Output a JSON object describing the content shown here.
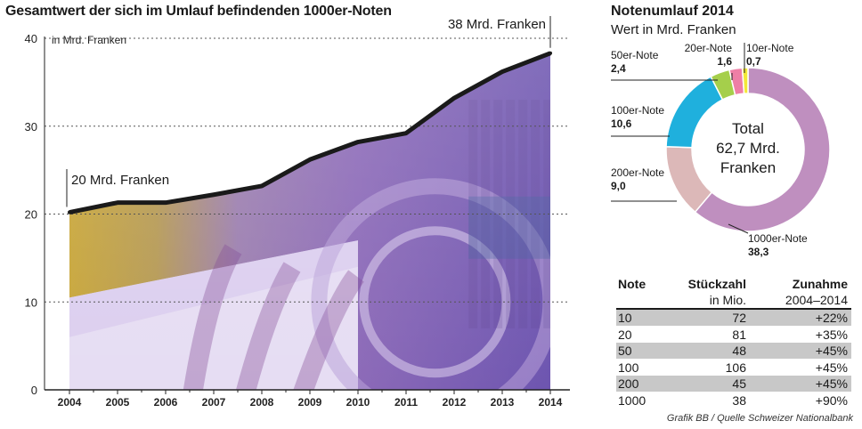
{
  "main_title": "Gesamtwert der sich im Umlauf befindenden 1000er-Noten",
  "chart_data": [
    {
      "type": "area",
      "title": "Gesamtwert der sich im Umlauf befindenden 1000er-Noten",
      "ylabel": "in Mrd. Franken",
      "x": [
        "2004",
        "2005",
        "2006",
        "2007",
        "2008",
        "2009",
        "2010",
        "2011",
        "2012",
        "2013",
        "2014"
      ],
      "series": [
        {
          "values": [
            20.2,
            21.3,
            21.3,
            22.2,
            23.2,
            26.2,
            28.2,
            29.2,
            33.2,
            36.2,
            38.3
          ]
        }
      ],
      "ylim": [
        0,
        40
      ],
      "yticks": [
        "0",
        "10",
        "20",
        "30",
        "40"
      ],
      "grid": true,
      "annotations": [
        {
          "text": "20 Mrd. Franken",
          "x": "2004",
          "y": 20.2
        },
        {
          "text": "38 Mrd. Franken",
          "x": "2014",
          "y": 38.3
        }
      ]
    },
    {
      "type": "pie",
      "title": "Notenumlauf 2014",
      "subtitle": "Wert in Mrd. Franken",
      "center_label": [
        "Total",
        "62,7 Mrd.",
        "Franken"
      ],
      "slices": [
        {
          "label": "1000er-Note",
          "value": 38.3,
          "value_text": "38,3",
          "color": "#bf8fbf"
        },
        {
          "label": "200er-Note",
          "value": 9.0,
          "value_text": "9,0",
          "color": "#dcb8b8"
        },
        {
          "label": "100er-Note",
          "value": 10.6,
          "value_text": "10,6",
          "color": "#1fb0dd"
        },
        {
          "label": "50er-Note",
          "value": 2.4,
          "value_text": "2,4",
          "color": "#a5cf4b"
        },
        {
          "label": "20er-Note",
          "value": 1.6,
          "value_text": "1,6",
          "color": "#ee7fa6"
        },
        {
          "label": "10er-Note",
          "value": 0.7,
          "value_text": "0,7",
          "color": "#f3e838"
        }
      ]
    },
    {
      "type": "table",
      "columns": [
        "Note",
        "Stückzahl",
        "Zunahme"
      ],
      "subheaders": [
        "",
        "in Mio.",
        "2004–2014"
      ],
      "rows": [
        [
          "10",
          "72",
          "+22%"
        ],
        [
          "20",
          "81",
          "+35%"
        ],
        [
          "50",
          "48",
          "+45%"
        ],
        [
          "100",
          "106",
          "+45%"
        ],
        [
          "200",
          "45",
          "+45%"
        ],
        [
          "1000",
          "38",
          "+90%"
        ]
      ]
    }
  ],
  "source": "Grafik BB / Quelle Schweizer Nationalbank"
}
